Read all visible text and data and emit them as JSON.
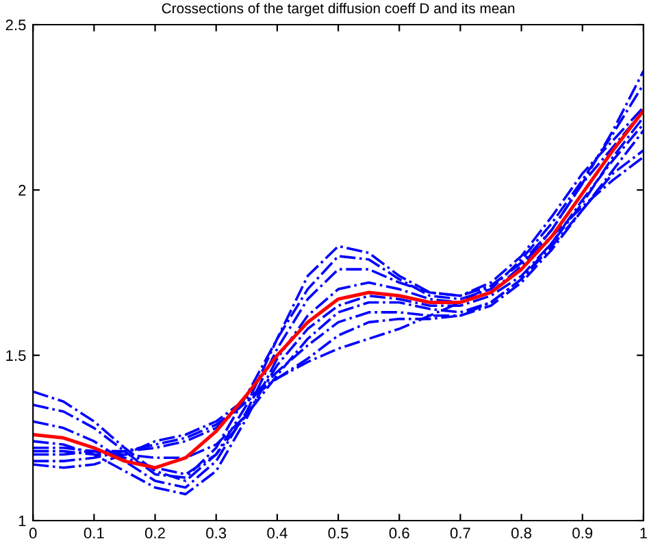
{
  "chart_data": {
    "type": "line",
    "title": "Crossections of the target diffusion coeff D and its mean",
    "x": [
      0,
      0.05,
      0.1,
      0.15,
      0.2,
      0.25,
      0.3,
      0.35,
      0.4,
      0.45,
      0.5,
      0.55,
      0.6,
      0.65,
      0.7,
      0.75,
      0.8,
      0.85,
      0.9,
      0.95,
      1
    ],
    "series": [
      {
        "color": "#0000ff",
        "line_style": "dashdot",
        "values": [
          1.39,
          1.36,
          1.3,
          1.22,
          1.15,
          1.12,
          1.2,
          1.35,
          1.55,
          1.74,
          1.83,
          1.81,
          1.74,
          1.69,
          1.68,
          1.71,
          1.78,
          1.88,
          2.02,
          2.18,
          2.36
        ]
      },
      {
        "color": "#0000ff",
        "line_style": "dashdot",
        "values": [
          1.35,
          1.33,
          1.28,
          1.21,
          1.14,
          1.13,
          1.22,
          1.38,
          1.55,
          1.7,
          1.8,
          1.79,
          1.73,
          1.68,
          1.67,
          1.7,
          1.79,
          1.9,
          2.03,
          2.17,
          2.32
        ]
      },
      {
        "color": "#0000ff",
        "line_style": "dashdot",
        "values": [
          1.3,
          1.28,
          1.24,
          1.18,
          1.12,
          1.1,
          1.18,
          1.33,
          1.52,
          1.67,
          1.76,
          1.76,
          1.72,
          1.69,
          1.68,
          1.72,
          1.8,
          1.92,
          2.05,
          2.15,
          2.25
        ]
      },
      {
        "color": "#0000ff",
        "line_style": "dashdot",
        "values": [
          1.24,
          1.23,
          1.2,
          1.15,
          1.1,
          1.08,
          1.15,
          1.31,
          1.49,
          1.62,
          1.7,
          1.72,
          1.7,
          1.67,
          1.66,
          1.69,
          1.77,
          1.88,
          2.02,
          2.13,
          2.24
        ]
      },
      {
        "color": "#0000ff",
        "line_style": "dashdot",
        "values": [
          1.22,
          1.22,
          1.21,
          1.19,
          1.16,
          1.14,
          1.2,
          1.32,
          1.47,
          1.58,
          1.65,
          1.68,
          1.67,
          1.65,
          1.65,
          1.68,
          1.74,
          1.84,
          1.96,
          2.1,
          2.22
        ]
      },
      {
        "color": "#0000ff",
        "line_style": "dashdot",
        "values": [
          1.21,
          1.21,
          1.2,
          1.2,
          1.19,
          1.19,
          1.23,
          1.32,
          1.44,
          1.55,
          1.63,
          1.66,
          1.66,
          1.64,
          1.63,
          1.66,
          1.73,
          1.84,
          1.97,
          2.09,
          2.2
        ]
      },
      {
        "color": "#0000ff",
        "line_style": "dashdot",
        "values": [
          1.2,
          1.2,
          1.21,
          1.21,
          1.22,
          1.24,
          1.28,
          1.36,
          1.45,
          1.53,
          1.6,
          1.63,
          1.63,
          1.62,
          1.62,
          1.65,
          1.72,
          1.82,
          1.94,
          2.06,
          2.18
        ]
      },
      {
        "color": "#0000ff",
        "line_style": "dashdot",
        "values": [
          1.18,
          1.18,
          1.19,
          1.21,
          1.23,
          1.25,
          1.29,
          1.36,
          1.43,
          1.49,
          1.56,
          1.6,
          1.61,
          1.61,
          1.62,
          1.66,
          1.73,
          1.83,
          1.94,
          2.05,
          2.12
        ]
      },
      {
        "color": "#0000ff",
        "line_style": "dashdot",
        "values": [
          1.17,
          1.16,
          1.17,
          1.2,
          1.24,
          1.26,
          1.3,
          1.37,
          1.43,
          1.48,
          1.52,
          1.55,
          1.58,
          1.62,
          1.66,
          1.71,
          1.78,
          1.86,
          1.95,
          2.03,
          2.1
        ]
      },
      {
        "color": "#ff0000",
        "line_style": "solid",
        "values": [
          1.26,
          1.25,
          1.22,
          1.18,
          1.16,
          1.19,
          1.27,
          1.38,
          1.5,
          1.6,
          1.67,
          1.69,
          1.68,
          1.66,
          1.66,
          1.69,
          1.76,
          1.86,
          1.99,
          2.12,
          2.24
        ]
      }
    ],
    "xlim": [
      0,
      1
    ],
    "xticks": [
      0,
      0.1,
      0.2,
      0.3,
      0.4,
      0.5,
      0.6,
      0.7,
      0.8,
      0.9,
      1
    ],
    "ylim": [
      1,
      2.5
    ],
    "yticks": [
      1,
      1.5,
      2,
      2.5
    ],
    "grid": false,
    "marker": "none"
  }
}
